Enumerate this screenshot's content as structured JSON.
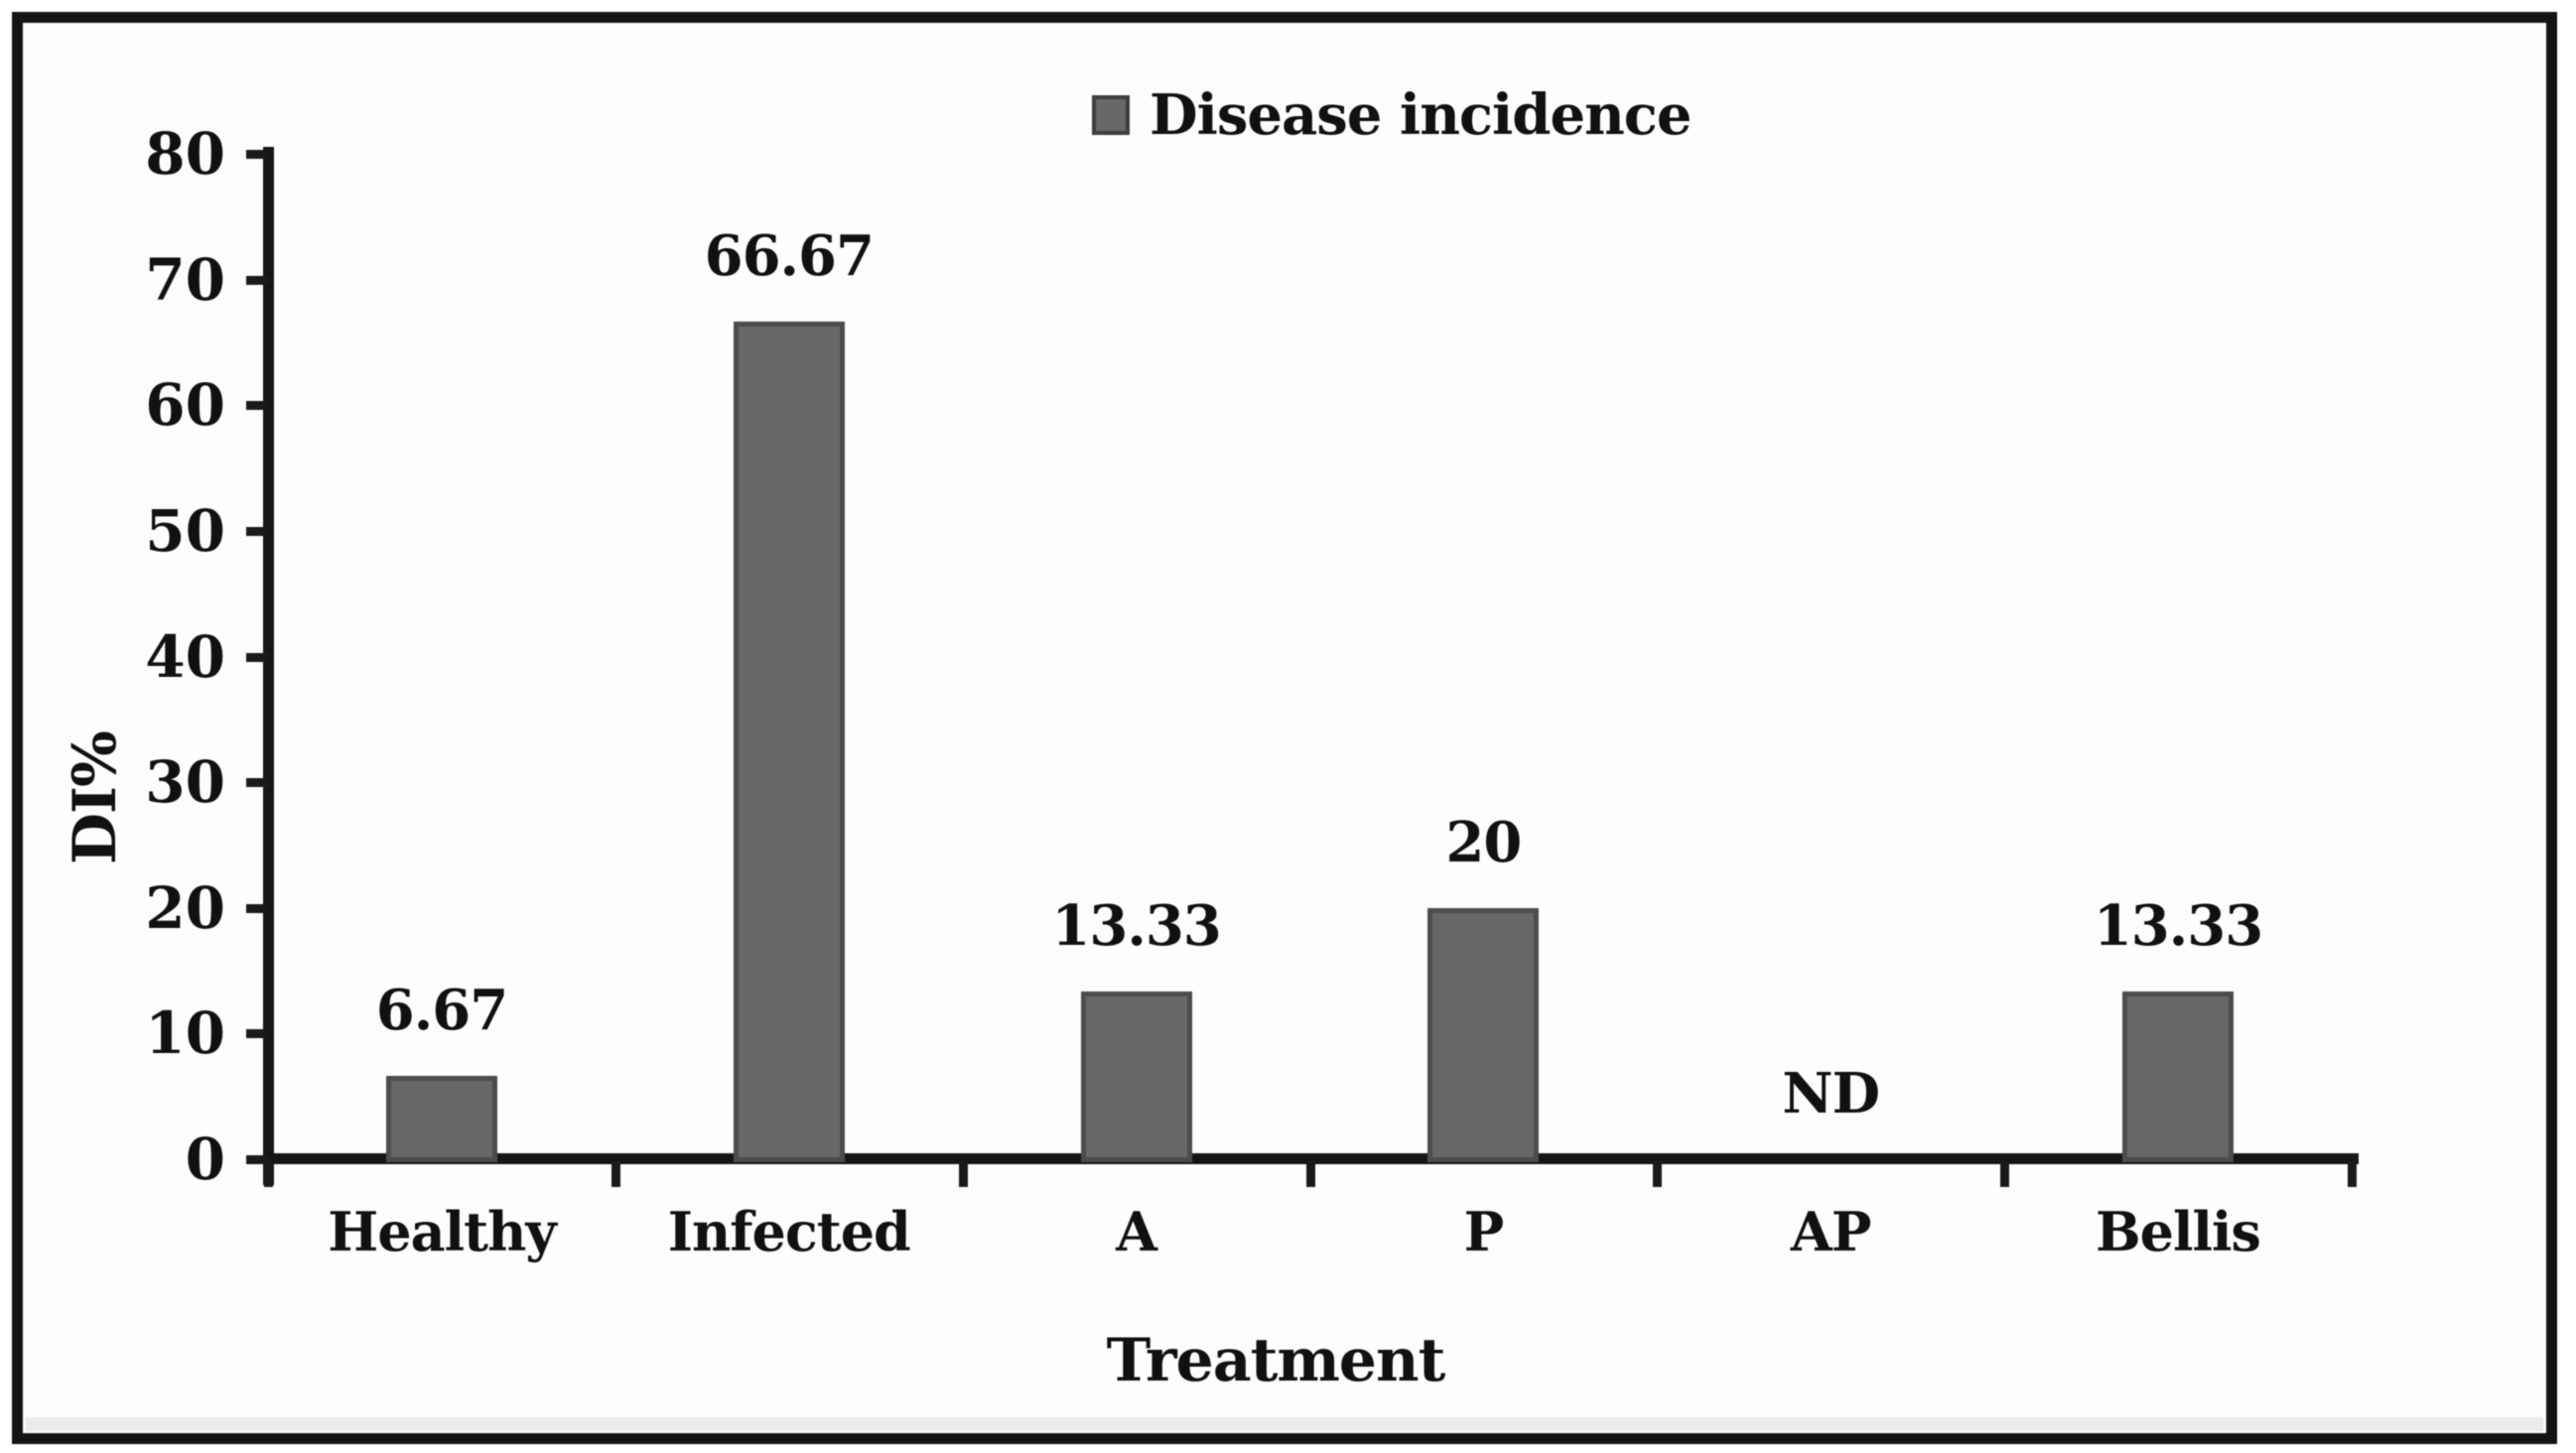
{
  "chart_data": {
    "type": "bar",
    "title": "",
    "legend": {
      "label": "Disease incidence",
      "marker": "square",
      "marker_color": "#686868",
      "position": "top-center"
    },
    "categories": [
      "Healthy",
      "Infected",
      "A",
      "P",
      "AP",
      "Bellis"
    ],
    "series": [
      {
        "name": "Disease incidence",
        "values": [
          6.67,
          66.67,
          13.33,
          20,
          null,
          13.33
        ],
        "value_labels": [
          "6.67",
          "66.67",
          "13.33",
          "20",
          "ND",
          "13.33"
        ]
      }
    ],
    "xlabel": "Treatment",
    "ylabel": "DI%",
    "ylim": [
      0,
      80
    ],
    "yticks": [
      0,
      10,
      20,
      30,
      40,
      50,
      60,
      70,
      80
    ],
    "grid": false,
    "bar_color": "#686868",
    "bar_border_color": "#4c4c4c",
    "axis_color": "#161616",
    "text_color": "#111111",
    "frame_border_color": "#141414"
  }
}
